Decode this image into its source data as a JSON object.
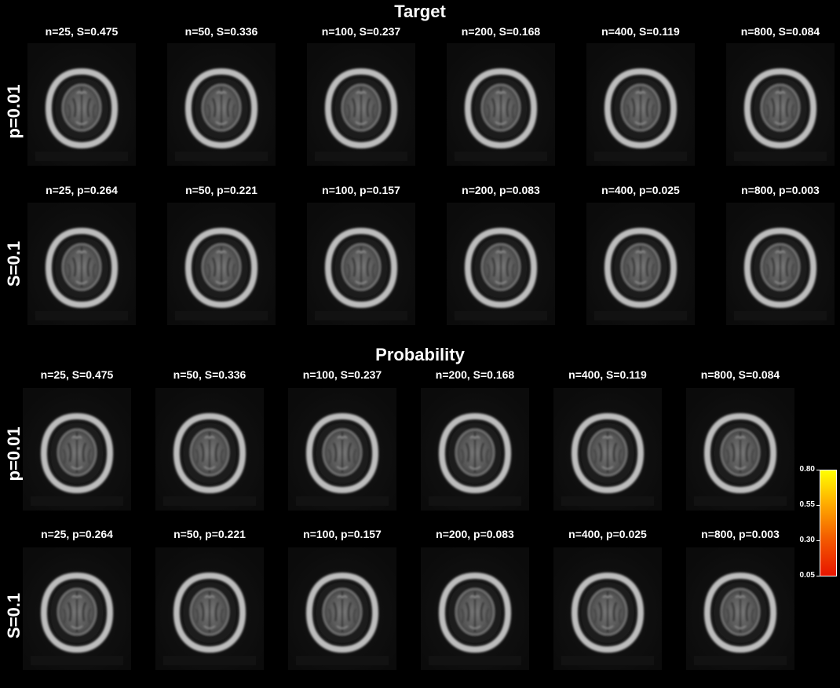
{
  "target_section": {
    "title": "Target",
    "rows": [
      {
        "label": "p=0.01",
        "captions": [
          "n=25, S=0.475",
          "n=50, S=0.336",
          "n=100, S=0.237",
          "n=200, S=0.168",
          "n=400, S=0.119",
          "n=800, S=0.084"
        ]
      },
      {
        "label": "S=0.1",
        "captions": [
          "n=25, p=0.264",
          "n=50, p=0.221",
          "n=100, p=0.157",
          "n=200, p=0.083",
          "n=400, p=0.025",
          "n=800, p=0.003"
        ]
      }
    ]
  },
  "probability_section": {
    "title": "Probability",
    "rows": [
      {
        "label": "p=0.01",
        "captions": [
          "n=25, S=0.475",
          "n=50, S=0.336",
          "n=100, S=0.237",
          "n=200, S=0.168",
          "n=400, S=0.119",
          "n=800, S=0.084"
        ]
      },
      {
        "label": "S=0.1",
        "captions": [
          "n=25, p=0.264",
          "n=50, p=0.221",
          "n=100, p=0.157",
          "n=200, p=0.083",
          "n=400, p=0.025",
          "n=800, p=0.003"
        ]
      }
    ]
  },
  "colorbar": {
    "ticks": [
      "0.80",
      "0.55",
      "0.30",
      "0.05"
    ],
    "colors": [
      "#ffff00",
      "#ffb000",
      "#f35a00",
      "#e81500"
    ]
  }
}
